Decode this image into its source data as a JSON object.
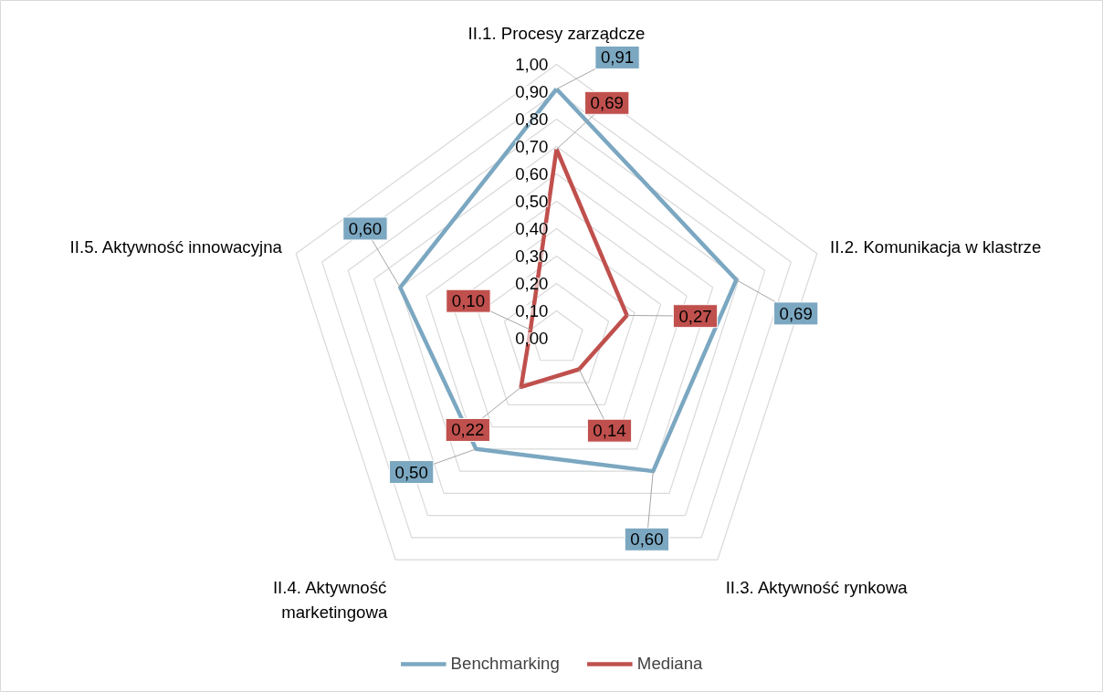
{
  "chart_data": {
    "type": "radar",
    "categories": [
      "II.1. Procesy zarządcze",
      "II.2. Komunikacja w klastrze",
      "II.3. Aktywność rynkowa",
      "II.4. Aktywność\nmarketingowa",
      "II.5. Aktywność innowacyjna"
    ],
    "series": [
      {
        "name": "Benchmarking",
        "color": "#7ba7c1",
        "values": [
          0.91,
          0.69,
          0.6,
          0.5,
          0.6
        ],
        "value_labels": [
          "0,91",
          "0,69",
          "0,60",
          "0,50",
          "0,60"
        ]
      },
      {
        "name": "Mediana",
        "color": "#c0504d",
        "values": [
          0.69,
          0.27,
          0.14,
          0.22,
          0.1
        ],
        "value_labels": [
          "0,69",
          "0,27",
          "0,14",
          "0,22",
          "0,10"
        ]
      }
    ],
    "ylim": [
      0,
      1
    ],
    "yticks": [
      {
        "value": 0,
        "label": "0,00"
      },
      {
        "value": 0.1,
        "label": "0,10"
      },
      {
        "value": 0.2,
        "label": "0,20"
      },
      {
        "value": 0.3,
        "label": "0,30"
      },
      {
        "value": 0.4,
        "label": "0,40"
      },
      {
        "value": 0.5,
        "label": "0,50"
      },
      {
        "value": 0.6,
        "label": "0,60"
      },
      {
        "value": 0.7,
        "label": "0,70"
      },
      {
        "value": 0.8,
        "label": "0,80"
      },
      {
        "value": 0.9,
        "label": "0,90"
      },
      {
        "value": 1,
        "label": "1,00"
      }
    ],
    "grid": true,
    "legend": "bottom",
    "marker": "none",
    "line_style": "solid"
  }
}
